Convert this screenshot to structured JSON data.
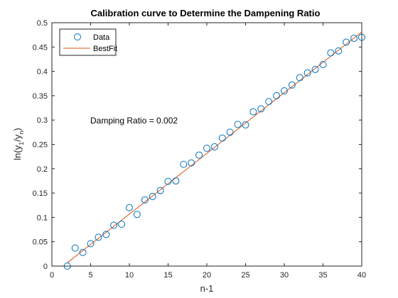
{
  "chart_data": {
    "type": "scatter",
    "title": "Calibration curve to Determine the Dampening Ratio",
    "xlabel": "n-1",
    "ylabel": {
      "base": "ln(y",
      "sub1": "1",
      "mid": "/y",
      "sub2": "n",
      "end": ")"
    },
    "xlim": [
      0,
      40
    ],
    "ylim": [
      0,
      0.5
    ],
    "x_ticks": [
      0,
      5,
      10,
      15,
      20,
      25,
      30,
      35,
      40
    ],
    "y_ticks": [
      0,
      0.05,
      0.1,
      0.15,
      0.2,
      0.25,
      0.3,
      0.35,
      0.4,
      0.45,
      0.5
    ],
    "x_tick_labels": [
      "0",
      "5",
      "10",
      "15",
      "20",
      "25",
      "30",
      "35",
      "40"
    ],
    "y_tick_labels": [
      "0",
      "0.05",
      "0.1",
      "0.15",
      "0.2",
      "0.25",
      "0.3",
      "0.35",
      "0.4",
      "0.45",
      "0.5"
    ],
    "grid": false,
    "legend_position": "top-left",
    "annotation": "Damping Ratio = 0.002",
    "series": [
      {
        "name": "Data",
        "style": "markers",
        "color": "#0072BD",
        "x": [
          2,
          3,
          4,
          5,
          6,
          7,
          8,
          9,
          10,
          11,
          12,
          13,
          14,
          15,
          16,
          17,
          18,
          19,
          20,
          21,
          22,
          23,
          24,
          25,
          26,
          27,
          28,
          29,
          30,
          31,
          32,
          33,
          34,
          35,
          36,
          37,
          38,
          39,
          40
        ],
        "y": [
          0.0,
          0.037,
          0.028,
          0.046,
          0.059,
          0.065,
          0.084,
          0.086,
          0.12,
          0.106,
          0.136,
          0.143,
          0.155,
          0.174,
          0.175,
          0.209,
          0.212,
          0.228,
          0.242,
          0.245,
          0.263,
          0.275,
          0.291,
          0.29,
          0.317,
          0.323,
          0.338,
          0.35,
          0.36,
          0.372,
          0.387,
          0.397,
          0.404,
          0.414,
          0.438,
          0.442,
          0.46,
          0.468,
          0.47
        ]
      },
      {
        "name": "BestFit",
        "style": "line",
        "color": "#D95319",
        "x": [
          2,
          40
        ],
        "y": [
          0.007,
          0.481
        ]
      }
    ]
  }
}
